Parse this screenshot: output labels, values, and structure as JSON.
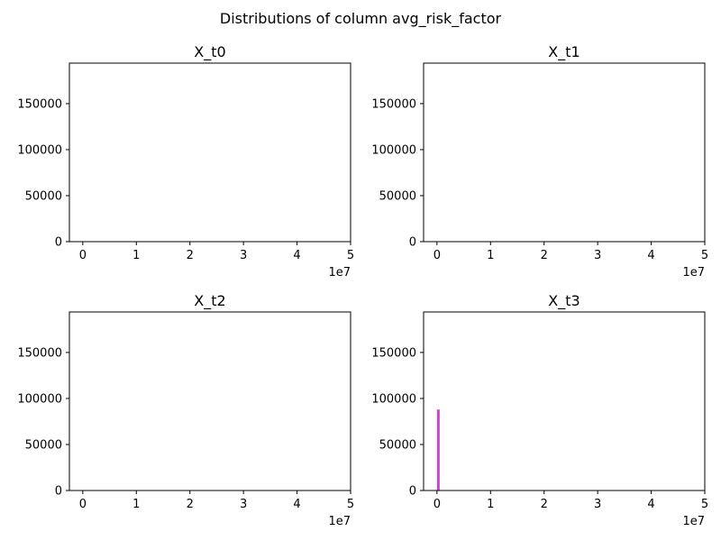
{
  "figure": {
    "suptitle": "Distributions of column avg_risk_factor"
  },
  "chart_data": [
    {
      "type": "bar",
      "title": "X_t0",
      "xlim": [
        -2500000,
        50000000
      ],
      "ylim": [
        0,
        194000
      ],
      "xticks": [
        0,
        10000000,
        20000000,
        30000000,
        40000000,
        50000000
      ],
      "xtick_labels": [
        "0",
        "1",
        "2",
        "3",
        "4",
        "5"
      ],
      "x_offset_label": "1e7",
      "yticks": [
        0,
        50000,
        100000,
        150000
      ],
      "ytick_labels": [
        "0",
        "50000",
        "100000",
        "150000"
      ],
      "bars": [],
      "color": "#cc44cc",
      "grid": false
    },
    {
      "type": "bar",
      "title": "X_t1",
      "xlim": [
        -2500000,
        50000000
      ],
      "ylim": [
        0,
        194000
      ],
      "xticks": [
        0,
        10000000,
        20000000,
        30000000,
        40000000,
        50000000
      ],
      "xtick_labels": [
        "0",
        "1",
        "2",
        "3",
        "4",
        "5"
      ],
      "x_offset_label": "1e7",
      "yticks": [
        0,
        50000,
        100000,
        150000
      ],
      "ytick_labels": [
        "0",
        "50000",
        "100000",
        "150000"
      ],
      "bars": [],
      "color": "#cc44cc",
      "grid": false
    },
    {
      "type": "bar",
      "title": "X_t2",
      "xlim": [
        -2500000,
        50000000
      ],
      "ylim": [
        0,
        194000
      ],
      "xticks": [
        0,
        10000000,
        20000000,
        30000000,
        40000000,
        50000000
      ],
      "xtick_labels": [
        "0",
        "1",
        "2",
        "3",
        "4",
        "5"
      ],
      "x_offset_label": "1e7",
      "yticks": [
        0,
        50000,
        100000,
        150000
      ],
      "ytick_labels": [
        "0",
        "50000",
        "100000",
        "150000"
      ],
      "bars": [],
      "color": "#cc44cc",
      "grid": false
    },
    {
      "type": "bar",
      "title": "X_t3",
      "xlim": [
        -2500000,
        50000000
      ],
      "ylim": [
        0,
        194000
      ],
      "xticks": [
        0,
        10000000,
        20000000,
        30000000,
        40000000,
        50000000
      ],
      "xtick_labels": [
        "0",
        "1",
        "2",
        "3",
        "4",
        "5"
      ],
      "x_offset_label": "1e7",
      "yticks": [
        0,
        50000,
        100000,
        150000
      ],
      "ytick_labels": [
        "0",
        "50000",
        "100000",
        "150000"
      ],
      "bars": [
        {
          "x0": 0,
          "x1": 500000,
          "count": 88000
        }
      ],
      "color": "#cc44cc",
      "grid": false
    }
  ]
}
